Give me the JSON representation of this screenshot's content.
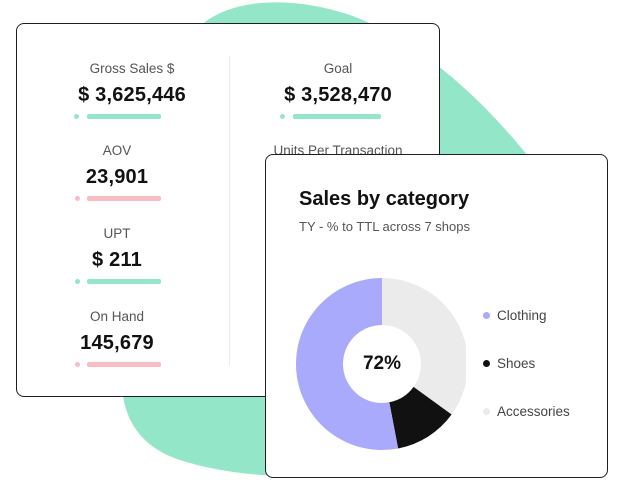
{
  "colors": {
    "blob": "#93e6c8",
    "bar_green": "#93e6c8",
    "bar_pink": "#f7bcc4",
    "clothing": "#aaaafd",
    "shoes": "#111111",
    "accessories": "#ebebeb"
  },
  "kpis": {
    "gross_sales": {
      "label": "Gross Sales $",
      "value": "$ 3,625,446",
      "bar_color": "green"
    },
    "goal": {
      "label": "Goal",
      "value": "$ 3,528,470",
      "bar_color": "green"
    },
    "aov": {
      "label": "AOV",
      "value": "23,901",
      "bar_color": "pink"
    },
    "units_per_transaction": {
      "label": "Units Per Transaction"
    },
    "upt": {
      "label": "UPT",
      "value": "$ 211",
      "bar_color": "green"
    },
    "on_hand": {
      "label": "On Hand",
      "value": "145,679",
      "bar_color": "pink"
    }
  },
  "sales_card": {
    "title": "Sales by category",
    "subtitle": "TY - % to TTL across 7 shops",
    "center_label": "72%",
    "legend": [
      {
        "label": "Clothing",
        "color": "#aaaafd",
        "icon": "circle-dot"
      },
      {
        "label": "Shoes",
        "color": "#111111",
        "icon": "circle-dot"
      },
      {
        "label": "Accessories",
        "color": "#ebebeb",
        "icon": "circle-dot"
      }
    ]
  },
  "chart_data": {
    "type": "pie",
    "title": "Sales by category",
    "subtitle": "TY - % to TTL across 7 shops",
    "categories": [
      "Clothing",
      "Shoes",
      "Accessories"
    ],
    "values": [
      53,
      12,
      35
    ],
    "center_text": "72%",
    "legend_placement": "right"
  }
}
